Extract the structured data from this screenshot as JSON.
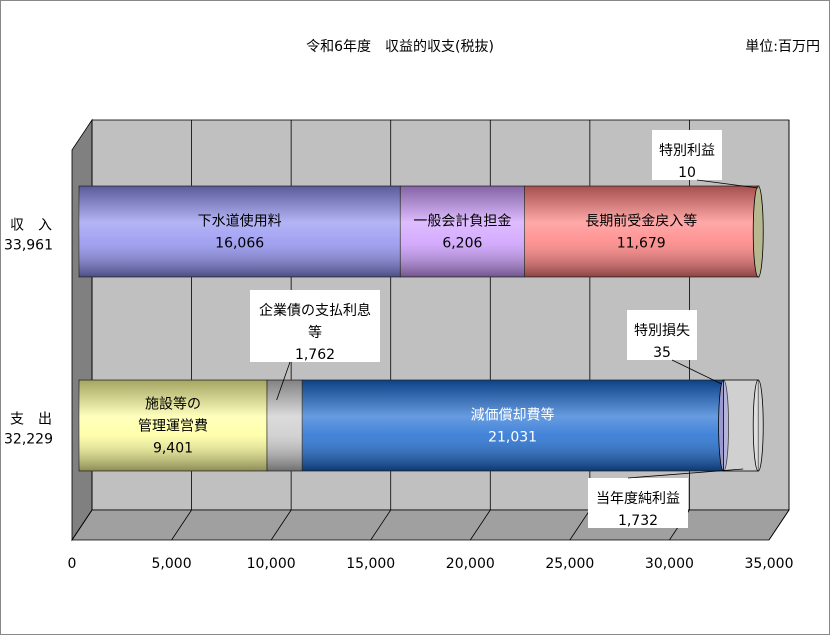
{
  "chart_data": {
    "type": "bar",
    "orientation": "horizontal",
    "stacked": true,
    "style": "3d-cylinder",
    "title": "令和6年度　収益的収支(税抜)",
    "unit_label": "単位:百万円",
    "xlim": [
      0,
      35000
    ],
    "x_ticks": [
      "0",
      "5,000",
      "10,000",
      "15,000",
      "20,000",
      "25,000",
      "30,000",
      "35,000"
    ],
    "x_tick_values": [
      0,
      5000,
      10000,
      15000,
      20000,
      25000,
      30000,
      35000
    ],
    "grid": true,
    "categories": [
      {
        "label": "収　入",
        "total": "33,961"
      },
      {
        "label": "支　出",
        "total": "32,229"
      }
    ],
    "rows": [
      [
        {
          "name": "下水道使用料",
          "value": 16066,
          "value_label": "16,066",
          "color": "#8c8cf0",
          "label_lines": [
            "下水道使用料"
          ],
          "callout": false
        },
        {
          "name": "一般会計負担金",
          "value": 6206,
          "value_label": "6,206",
          "color": "#cc99ff",
          "label_lines": [
            "一般会計負担金"
          ],
          "callout": false
        },
        {
          "name": "長期前受金戻入等",
          "value": 11679,
          "value_label": "11,679",
          "color": "#ff7a7a",
          "label_lines": [
            "長期前受金戻入等"
          ],
          "callout": false
        },
        {
          "name": "特別利益",
          "value": 10,
          "value_label": "10",
          "color": "#b8b890",
          "label_lines": [
            "特別利益"
          ],
          "callout": true
        }
      ],
      [
        {
          "name": "施設等の管理運営費",
          "value": 9401,
          "value_label": "9,401",
          "color": "#ffff99",
          "label_lines": [
            "施設等の",
            "管理運営費"
          ],
          "callout": false
        },
        {
          "name": "企業債の支払利息等",
          "value": 1762,
          "value_label": "1,762",
          "color": "#c8c8c8",
          "label_lines": [
            "企業債の支払利息",
            "等"
          ],
          "callout": true
        },
        {
          "name": "減価償却費等",
          "value": 21031,
          "value_label": "21,031",
          "color": "#1566d0",
          "label_lines": [
            "減価償却費等"
          ],
          "callout": false
        },
        {
          "name": "特別損失",
          "value": 35,
          "value_label": "35",
          "color": "#9a9ad0",
          "label_lines": [
            "特別損失"
          ],
          "callout": true
        },
        {
          "name": "当年度純利益",
          "value": 1732,
          "value_label": "1,732",
          "color": "#ffffff",
          "label_lines": [
            "当年度純利益"
          ],
          "callout": true,
          "transparent": true
        }
      ]
    ]
  }
}
